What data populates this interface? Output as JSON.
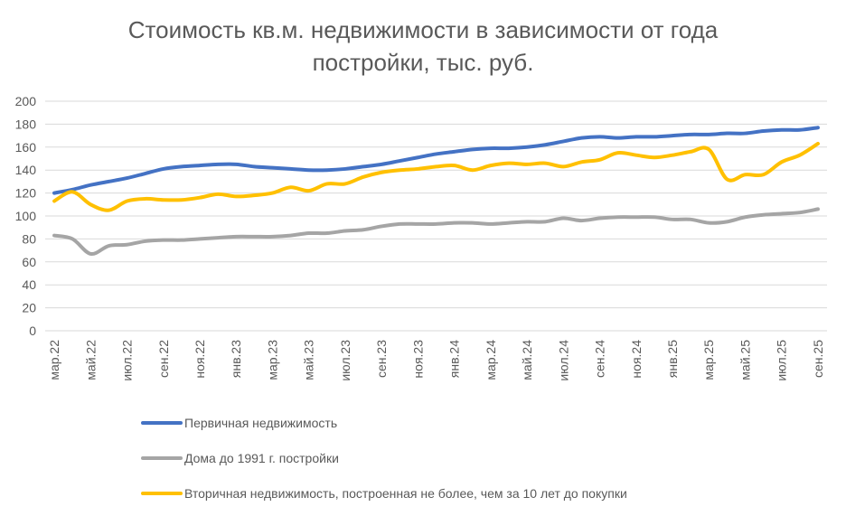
{
  "chart_data": {
    "type": "line",
    "title": [
      "Стоимость кв.м. недвижимости в зависимости от года",
      "постройки, тыс. руб."
    ],
    "categories": [
      "мар.22",
      null,
      "май.22",
      null,
      "июл.22",
      null,
      "сен.22",
      null,
      "ноя.22",
      null,
      "янв.23",
      null,
      "мар.23",
      null,
      "май.23",
      null,
      "июл.23",
      null,
      "сен.23",
      null,
      "ноя.23",
      null,
      "янв.24",
      null,
      "мар.24",
      null,
      "май.24",
      null,
      "июл.24",
      null,
      "сен.24",
      null,
      "ноя.24",
      null,
      "янв.25",
      null,
      "мар.25",
      null,
      "май.25",
      null,
      "июл.25",
      null,
      "сен.25"
    ],
    "series": [
      {
        "name": "Первичная недвижимость",
        "color": "#4472c4",
        "values": [
          120,
          123,
          127,
          130,
          133,
          137,
          141,
          143,
          144,
          145,
          145,
          143,
          142,
          141,
          140,
          140,
          141,
          143,
          145,
          148,
          151,
          154,
          156,
          158,
          159,
          159,
          160,
          162,
          165,
          168,
          169,
          168,
          169,
          169,
          170,
          171,
          171,
          172,
          172,
          174,
          175,
          175,
          177
        ]
      },
      {
        "name": "Дома до 1991 г. постройки",
        "color": "#a5a5a5",
        "values": [
          83,
          80,
          67,
          74,
          75,
          78,
          79,
          79,
          80,
          81,
          82,
          82,
          82,
          83,
          85,
          85,
          87,
          88,
          91,
          93,
          93,
          93,
          94,
          94,
          93,
          94,
          95,
          95,
          98,
          96,
          98,
          99,
          99,
          99,
          97,
          97,
          94,
          95,
          99,
          101,
          102,
          103,
          106
        ]
      },
      {
        "name": "Вторичная недвижимость, построенная не более, чем за 10 лет до покупки",
        "color": "#ffc000",
        "values": [
          113,
          121,
          110,
          105,
          113,
          115,
          114,
          114,
          116,
          119,
          117,
          118,
          120,
          125,
          122,
          128,
          128,
          134,
          138,
          140,
          141,
          143,
          144,
          140,
          144,
          146,
          145,
          146,
          143,
          147,
          149,
          155,
          153,
          151,
          153,
          156,
          158,
          132,
          136,
          136,
          147,
          153,
          163
        ]
      }
    ],
    "ylim": [
      0,
      200
    ],
    "yticks": [
      0,
      20,
      40,
      60,
      80,
      100,
      120,
      140,
      160,
      180,
      200
    ],
    "grid": true
  }
}
